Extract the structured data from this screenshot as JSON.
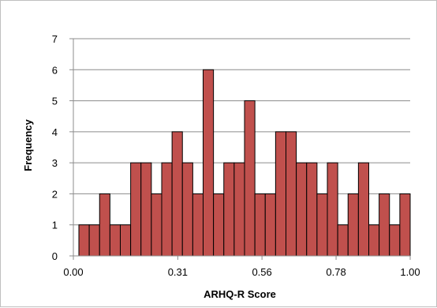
{
  "chart_data": {
    "type": "bar",
    "title": "",
    "xlabel": "ARHQ-R Score",
    "ylabel": "Frequency",
    "ylim": [
      0,
      7
    ],
    "yticks": [
      "0",
      "1",
      "2",
      "3",
      "4",
      "5",
      "6",
      "7"
    ],
    "xticks": [
      "0.00",
      "0.31",
      "0.56",
      "0.78",
      "1.00"
    ],
    "xtick_values": [
      0.0,
      0.31,
      0.56,
      0.78,
      1.0
    ],
    "xlim": [
      0.0,
      1.0
    ],
    "grid": "horizontal",
    "values": [
      1,
      1,
      2,
      1,
      1,
      3,
      3,
      2,
      3,
      4,
      3,
      2,
      6,
      2,
      3,
      3,
      5,
      2,
      2,
      4,
      4,
      3,
      3,
      2,
      3,
      1,
      2,
      3,
      1,
      2,
      1,
      2
    ],
    "bar_color": "#c0504d",
    "bar_edge_color": "#000000"
  }
}
